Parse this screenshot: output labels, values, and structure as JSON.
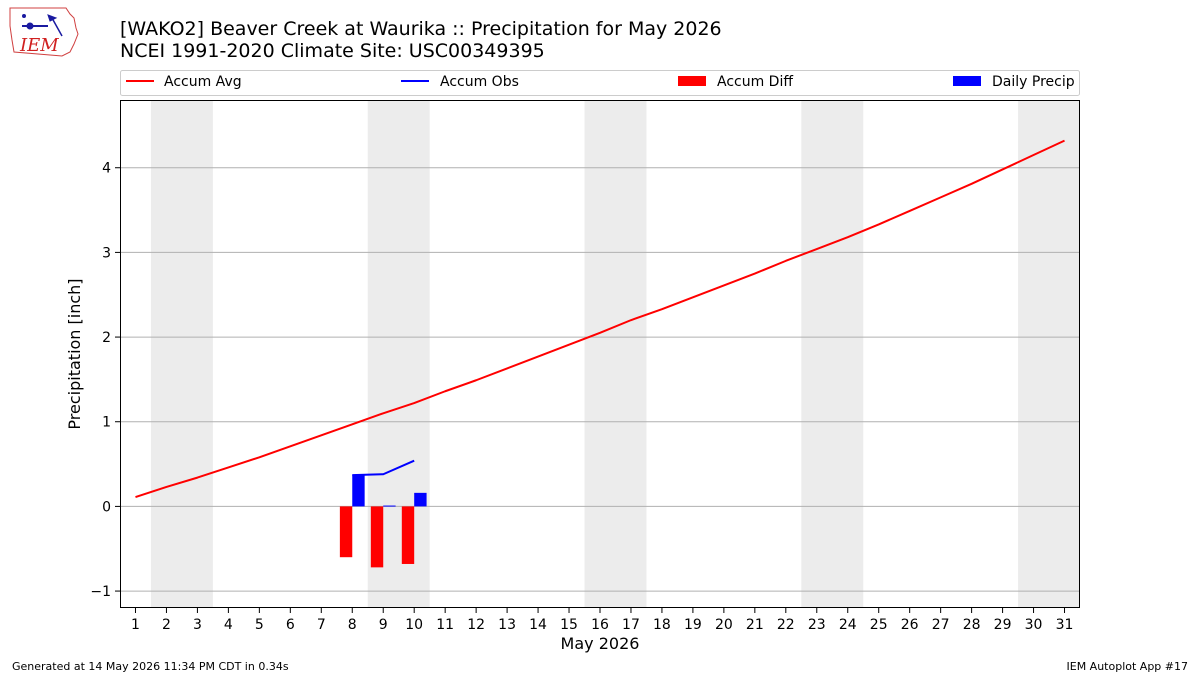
{
  "header": {
    "logo_text": "IEM",
    "title": "[WAKO2] Beaver Creek at Waurika :: Precipitation for May 2026",
    "subtitle": "NCEI 1991-2020 Climate Site: USC00349395"
  },
  "footer": {
    "generated": "Generated at 14 May 2026 11:34 PM CDT in 0.34s",
    "app": "IEM Autoplot App #17"
  },
  "chart_data": {
    "type": "line",
    "title": "[WAKO2] Beaver Creek at Waurika :: Precipitation for May 2026",
    "subtitle": "NCEI 1991-2020 Climate Site: USC00349395",
    "xlabel": "May 2026",
    "ylabel": "Precipitation [inch]",
    "xlim": [
      0.5,
      31.5
    ],
    "ylim": [
      -1.2,
      4.8
    ],
    "x_ticks": [
      1,
      2,
      3,
      4,
      5,
      6,
      7,
      8,
      9,
      10,
      11,
      12,
      13,
      14,
      15,
      16,
      17,
      18,
      19,
      20,
      21,
      22,
      23,
      24,
      25,
      26,
      27,
      28,
      29,
      30,
      31
    ],
    "x_tick_labels": [
      "1",
      "2",
      "3",
      "4",
      "5",
      "6",
      "7",
      "8",
      "9",
      "10",
      "11",
      "12",
      "13",
      "14",
      "15",
      "16",
      "17",
      "18",
      "19",
      "20",
      "21",
      "22",
      "23",
      "24",
      "25",
      "26",
      "27",
      "28",
      "29",
      "30",
      "31"
    ],
    "y_ticks": [
      -1,
      0,
      1,
      2,
      3,
      4
    ],
    "y_tick_labels": [
      "−1",
      "0",
      "1",
      "2",
      "3",
      "4"
    ],
    "grid": "horizontal",
    "legend_position": "top",
    "weekend_shading": [
      [
        1.5,
        3.5
      ],
      [
        8.5,
        10.5
      ],
      [
        15.5,
        17.5
      ],
      [
        22.5,
        24.5
      ],
      [
        29.5,
        31.5
      ]
    ],
    "weekend_color": "#ececec",
    "series": [
      {
        "name": "Accum Avg",
        "type": "line",
        "color": "#ff0000",
        "x": [
          1,
          2,
          3,
          4,
          5,
          6,
          7,
          8,
          9,
          10,
          11,
          12,
          13,
          14,
          15,
          16,
          17,
          18,
          19,
          20,
          21,
          22,
          23,
          24,
          25,
          26,
          27,
          28,
          29,
          30,
          31
        ],
        "values": [
          0.11,
          0.23,
          0.34,
          0.46,
          0.58,
          0.71,
          0.84,
          0.97,
          1.1,
          1.22,
          1.36,
          1.49,
          1.63,
          1.77,
          1.91,
          2.05,
          2.2,
          2.33,
          2.47,
          2.61,
          2.75,
          2.9,
          3.04,
          3.18,
          3.33,
          3.49,
          3.65,
          3.81,
          3.98,
          4.15,
          4.32
        ]
      },
      {
        "name": "Accum Obs",
        "type": "line",
        "color": "#0000ff",
        "x": [
          8,
          9,
          10
        ],
        "values": [
          0.37,
          0.38,
          0.54
        ]
      },
      {
        "name": "Accum Diff",
        "type": "bar",
        "color": "#ff0000",
        "x": [
          8,
          9,
          10
        ],
        "values": [
          -0.6,
          -0.72,
          -0.68
        ]
      },
      {
        "name": "Daily Precip",
        "type": "bar",
        "color": "#0000ff",
        "x": [
          8,
          9,
          10
        ],
        "values": [
          0.37,
          0.01,
          0.16
        ]
      }
    ]
  }
}
